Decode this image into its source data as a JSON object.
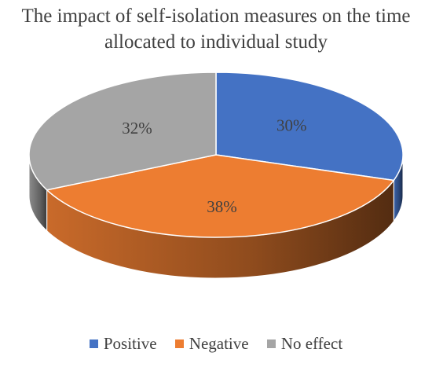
{
  "chart_data": {
    "type": "pie",
    "title_lines": [
      "The impact of self-isolation measures on the time",
      "allocated to individual study"
    ],
    "categories": [
      "Positive",
      "Negative",
      "No effect"
    ],
    "values": [
      30,
      38,
      32
    ],
    "data_labels": [
      "30%",
      "38%",
      "32%"
    ],
    "colors": [
      "#4472C4",
      "#ED7D31",
      "#A5A5A5"
    ],
    "style": "3d",
    "legend_position": "bottom"
  }
}
